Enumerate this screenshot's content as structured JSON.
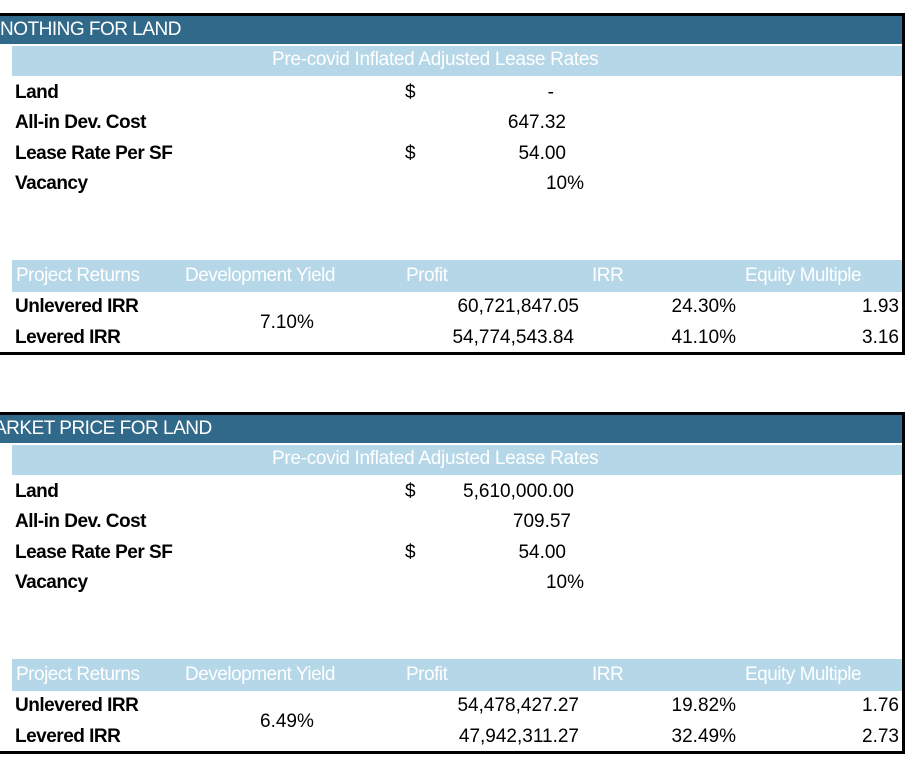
{
  "sections": [
    {
      "title": "NOTHING FOR LAND",
      "subtitle": "Pre-covid Inflated Adjusted Lease Rates",
      "inputs": {
        "land": {
          "label": "Land",
          "currency": "$",
          "value": "-"
        },
        "dev_cost": {
          "label": "All-in Dev. Cost",
          "value": "647.32"
        },
        "lease_rate": {
          "label": "Lease Rate Per SF",
          "currency": "$",
          "value": "54.00"
        },
        "vacancy": {
          "label": "Vacancy",
          "value": "10%"
        }
      },
      "returns_headers": [
        "Project Returns",
        "Development Yield",
        "Profit",
        "IRR",
        "Equity Multiple"
      ],
      "development_yield": "7.10%",
      "rows": [
        {
          "label": "Unlevered IRR",
          "profit": "60,721,847.05",
          "irr": "24.30%",
          "equity_multiple": "1.93"
        },
        {
          "label": "Levered IRR",
          "profit": "54,774,543.84",
          "irr": "41.10%",
          "equity_multiple": "3.16"
        }
      ]
    },
    {
      "title": "ARKET PRICE FOR LAND",
      "subtitle": "Pre-covid Inflated Adjusted Lease Rates",
      "inputs": {
        "land": {
          "label": "Land",
          "currency": "$",
          "value": "5,610,000.00"
        },
        "dev_cost": {
          "label": "All-in Dev. Cost",
          "value": "709.57"
        },
        "lease_rate": {
          "label": "Lease Rate Per SF",
          "currency": "$",
          "value": "54.00"
        },
        "vacancy": {
          "label": "Vacancy",
          "value": "10%"
        }
      },
      "returns_headers": [
        "Project Returns",
        "Development Yield",
        "Profit",
        "IRR",
        "Equity Multiple"
      ],
      "development_yield": "6.49%",
      "rows": [
        {
          "label": "Unlevered IRR",
          "profit": "54,478,427.27",
          "irr": "19.82%",
          "equity_multiple": "1.76"
        },
        {
          "label": "Levered IRR",
          "profit": "47,942,311.27",
          "irr": "32.49%",
          "equity_multiple": "2.73"
        }
      ]
    }
  ],
  "colors": {
    "title_bar": "#31698a",
    "sub_bar": "#b5d7e8"
  }
}
